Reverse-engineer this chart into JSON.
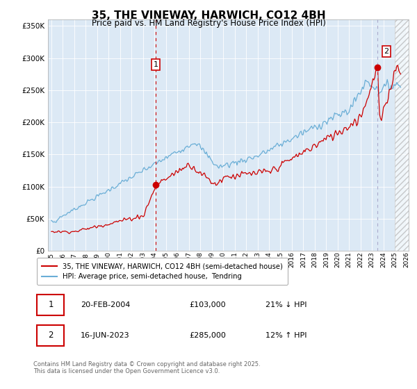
{
  "title": "35, THE VINEWAY, HARWICH, CO12 4BH",
  "subtitle": "Price paid vs. HM Land Registry's House Price Index (HPI)",
  "plot_bg_color": "#dce9f5",
  "red_color": "#cc0000",
  "blue_color": "#6aaed6",
  "ylim": [
    0,
    360000
  ],
  "yticks": [
    0,
    50000,
    100000,
    150000,
    200000,
    250000,
    300000,
    350000
  ],
  "ytick_labels": [
    "£0",
    "£50K",
    "£100K",
    "£150K",
    "£200K",
    "£250K",
    "£300K",
    "£350K"
  ],
  "xmin_year": 1995,
  "xmax_year": 2026,
  "xtick_years": [
    1995,
    1996,
    1997,
    1998,
    1999,
    2000,
    2001,
    2002,
    2003,
    2004,
    2005,
    2006,
    2007,
    2008,
    2009,
    2010,
    2011,
    2012,
    2013,
    2014,
    2015,
    2016,
    2017,
    2018,
    2019,
    2020,
    2021,
    2022,
    2023,
    2024,
    2025,
    2026
  ],
  "legend_entries": [
    "35, THE VINEWAY, HARWICH, CO12 4BH (semi-detached house)",
    "HPI: Average price, semi-detached house,  Tendring"
  ],
  "sale1_x": 2004.12,
  "sale1_y": 103000,
  "sale1_label": "1",
  "sale2_x": 2023.46,
  "sale2_y": 285000,
  "sale2_label": "2",
  "annotation1": [
    "1",
    "20-FEB-2004",
    "£103,000",
    "21% ↓ HPI"
  ],
  "annotation2": [
    "2",
    "16-JUN-2023",
    "£285,000",
    "12% ↑ HPI"
  ],
  "footer": "Contains HM Land Registry data © Crown copyright and database right 2025.\nThis data is licensed under the Open Government Licence v3.0."
}
